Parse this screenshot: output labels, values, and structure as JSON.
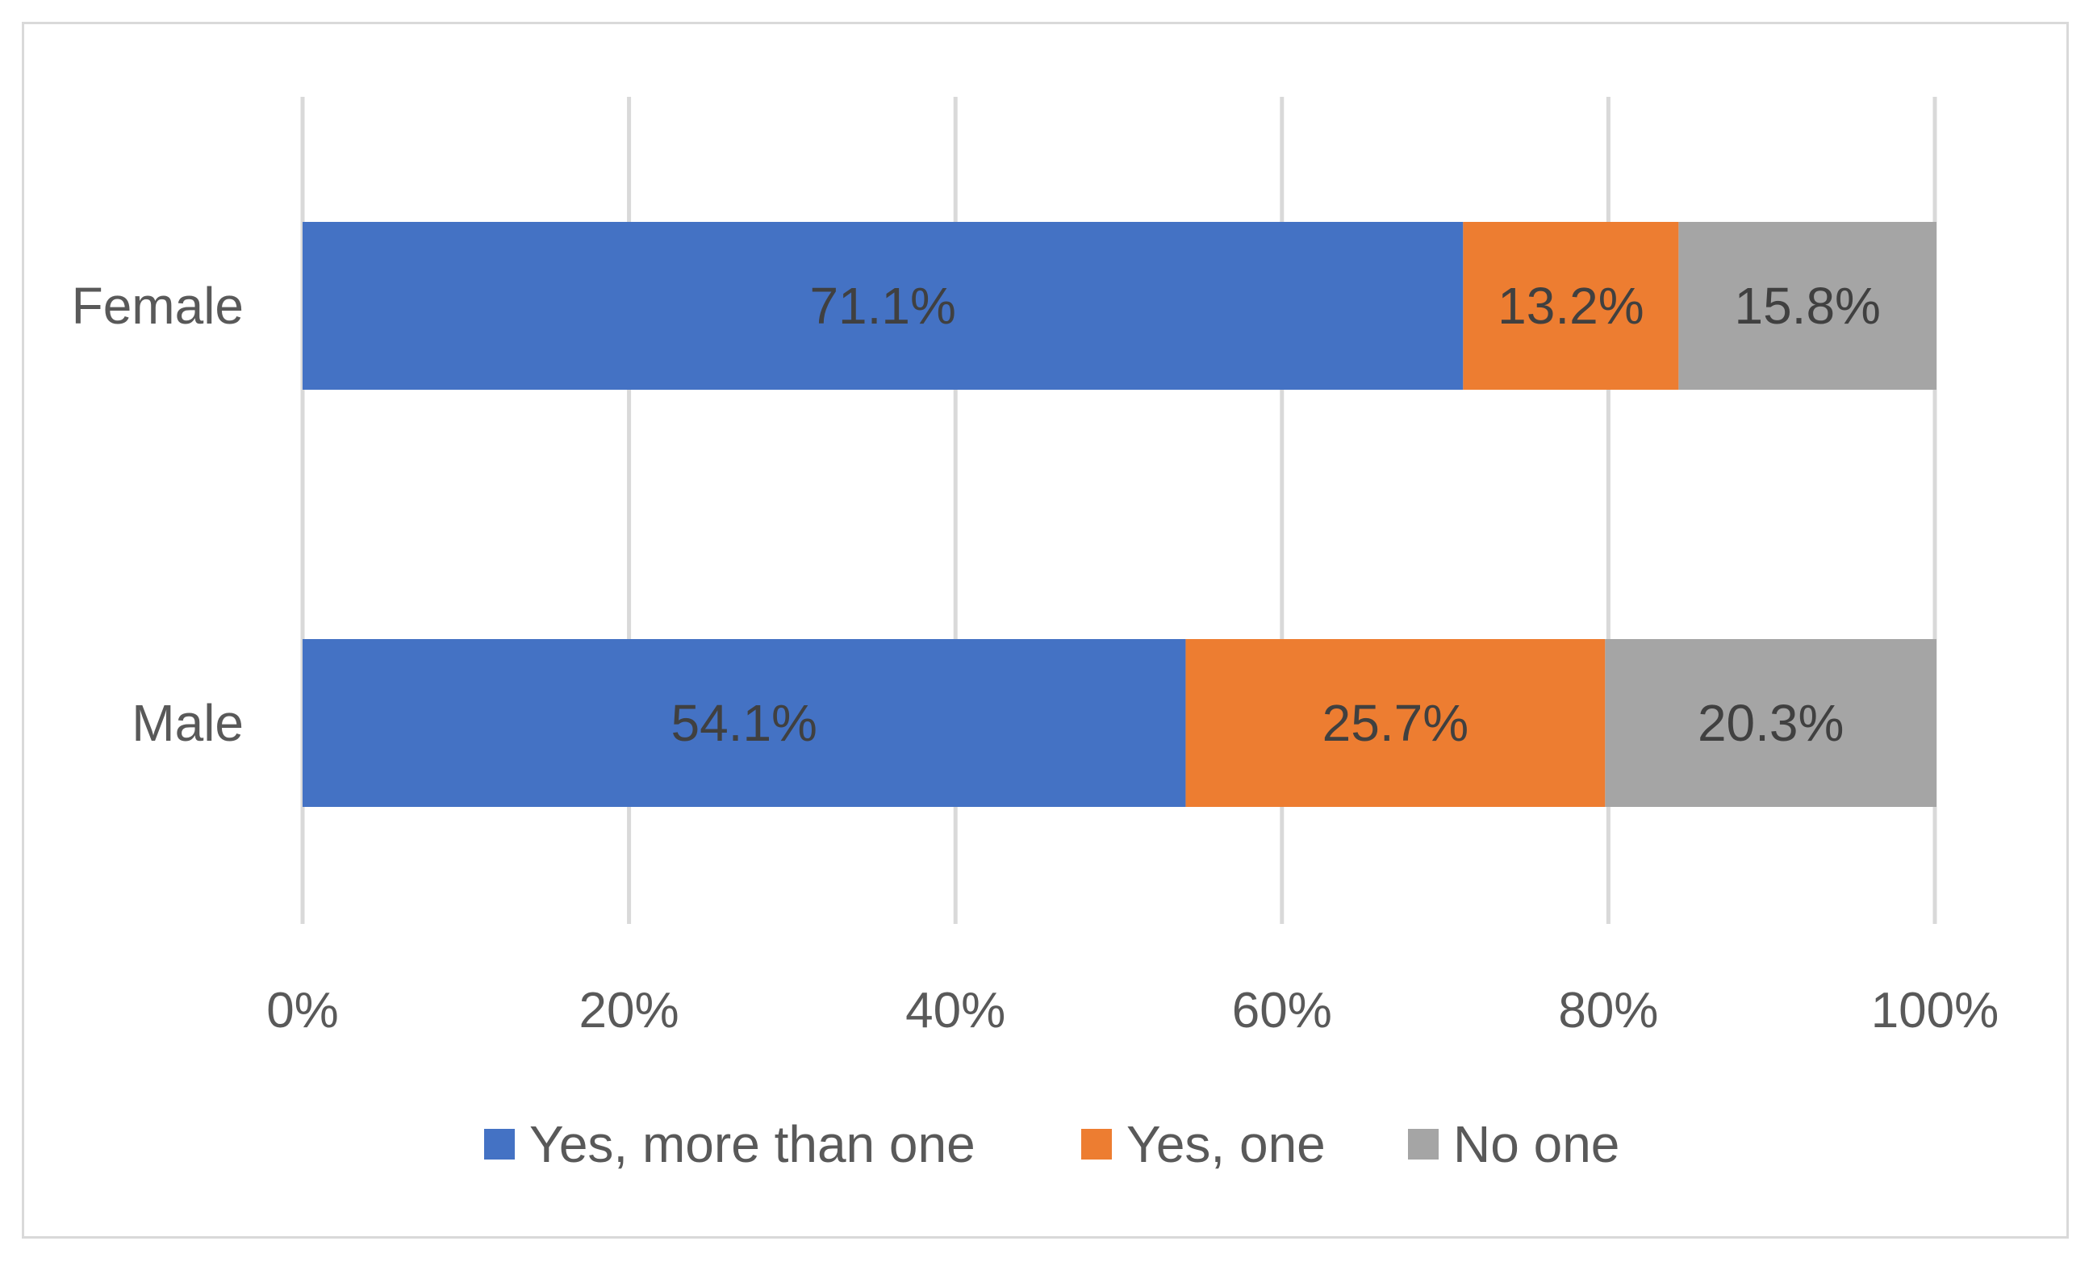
{
  "chart_data": {
    "type": "bar",
    "orientation": "horizontal",
    "stacked": "percent",
    "categories": [
      "Female",
      "Male"
    ],
    "series": [
      {
        "name": "Yes, more than one",
        "color": "#4472c4",
        "values": [
          71.1,
          54.1
        ],
        "labels": [
          "71.1%",
          "54.1%"
        ]
      },
      {
        "name": "Yes, one",
        "color": "#ed7d31",
        "values": [
          13.2,
          25.7
        ],
        "labels": [
          "13.2%",
          "25.7%"
        ]
      },
      {
        "name": "No one",
        "color": "#a5a5a5",
        "values": [
          15.8,
          20.3
        ],
        "labels": [
          "15.8%",
          "20.3%"
        ]
      }
    ],
    "xlim": [
      0,
      100
    ],
    "xticks": [
      0,
      20,
      40,
      60,
      80,
      100
    ],
    "xtick_labels": [
      "0%",
      "20%",
      "40%",
      "60%",
      "80%",
      "100%"
    ],
    "title": "",
    "xlabel": "",
    "ylabel": "",
    "grid": "vertical",
    "legend": "bottom"
  }
}
